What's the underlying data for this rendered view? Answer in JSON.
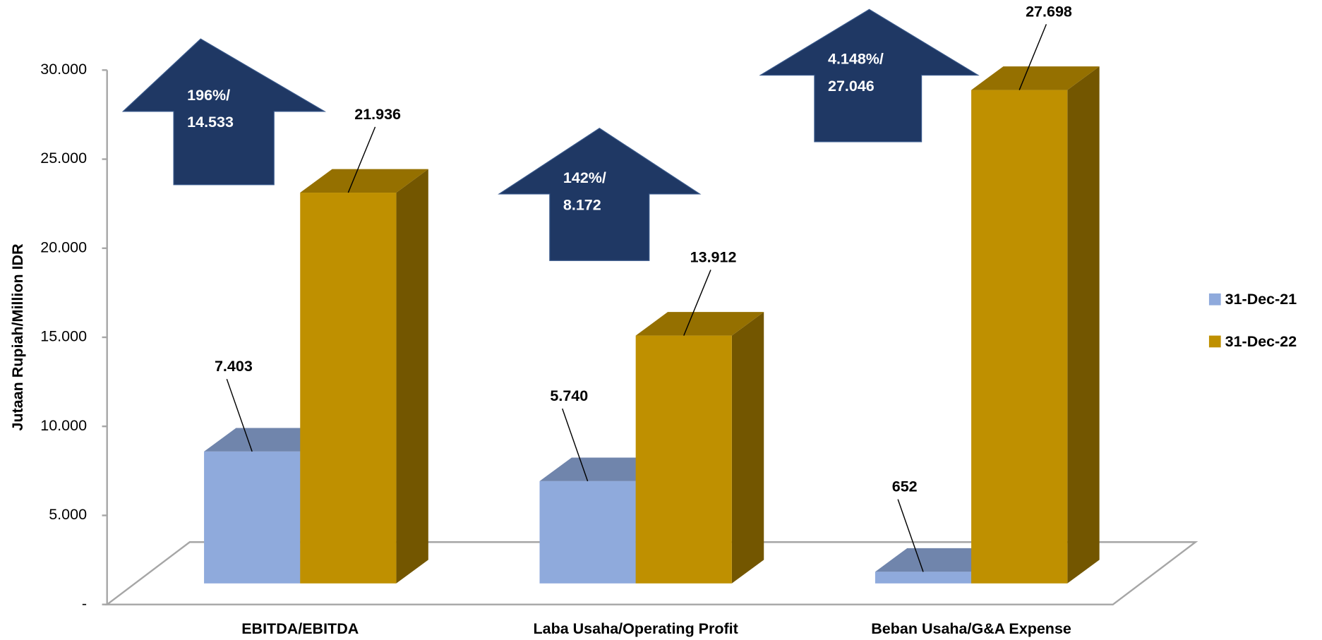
{
  "chart_data": {
    "type": "bar3d",
    "ylabel": "Jutaan Rupiah/Million IDR",
    "categories": [
      "EBITDA/EBITDA",
      "Laba Usaha/Operating Profit",
      "Beban Usaha/G&A Expense"
    ],
    "series": [
      {
        "name": "31-Dec-21",
        "color": "#8faadc",
        "values": [
          7403,
          5740,
          652
        ],
        "value_labels": [
          "7.403",
          "5.740",
          "652"
        ]
      },
      {
        "name": "31-Dec-22",
        "color": "#bf9000",
        "values": [
          21936,
          13912,
          27698
        ],
        "value_labels": [
          "21.936",
          "13.912",
          "27.698"
        ]
      }
    ],
    "annotations": [
      [
        "196%/",
        "14.533"
      ],
      [
        "142%/",
        "8.172"
      ],
      [
        "4.148%/",
        "27.046"
      ]
    ],
    "ylim": [
      0,
      30000
    ],
    "yticks": [
      {
        "value": 0,
        "label": "-"
      },
      {
        "value": 5000,
        "label": "5.000"
      },
      {
        "value": 10000,
        "label": "10.000"
      },
      {
        "value": 15000,
        "label": "15.000"
      },
      {
        "value": 20000,
        "label": "20.000"
      },
      {
        "value": 25000,
        "label": "25.000"
      },
      {
        "value": 30000,
        "label": "30.000"
      }
    ],
    "legend": "right"
  }
}
